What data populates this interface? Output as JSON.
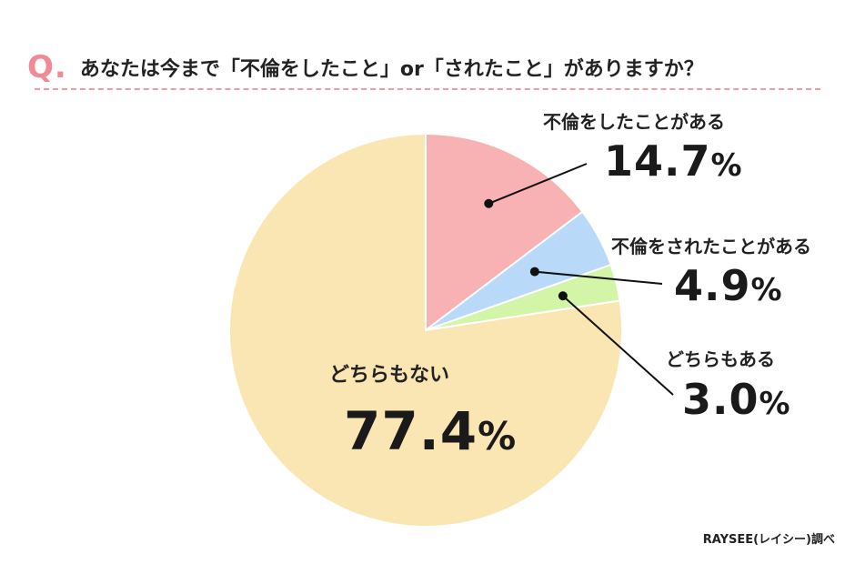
{
  "question": {
    "mark": "Q.",
    "text": "あなたは今まで「不倫をしたこと」or「されたこと」がありますか？"
  },
  "chart_data": {
    "type": "pie",
    "slices": [
      {
        "label": "不倫をしたことがある",
        "value": 14.7,
        "display": "14.7",
        "color": "#f8b2b4"
      },
      {
        "label": "不倫をされたことがある",
        "value": 4.9,
        "display": "4.9",
        "color": "#b8d9f7"
      },
      {
        "label": "どちらもある",
        "value": 3.0,
        "display": "3.0",
        "color": "#d2f5a8"
      },
      {
        "label": "どちらもない",
        "value": 77.4,
        "display": "77.4",
        "color": "#fae6b2"
      }
    ],
    "unit": "%",
    "start_angle": "12 o'clock",
    "direction": "clockwise",
    "slice_border": "#ffffff",
    "leader_color": "#111111"
  },
  "source": "RAYSEE(レイシー)調べ"
}
